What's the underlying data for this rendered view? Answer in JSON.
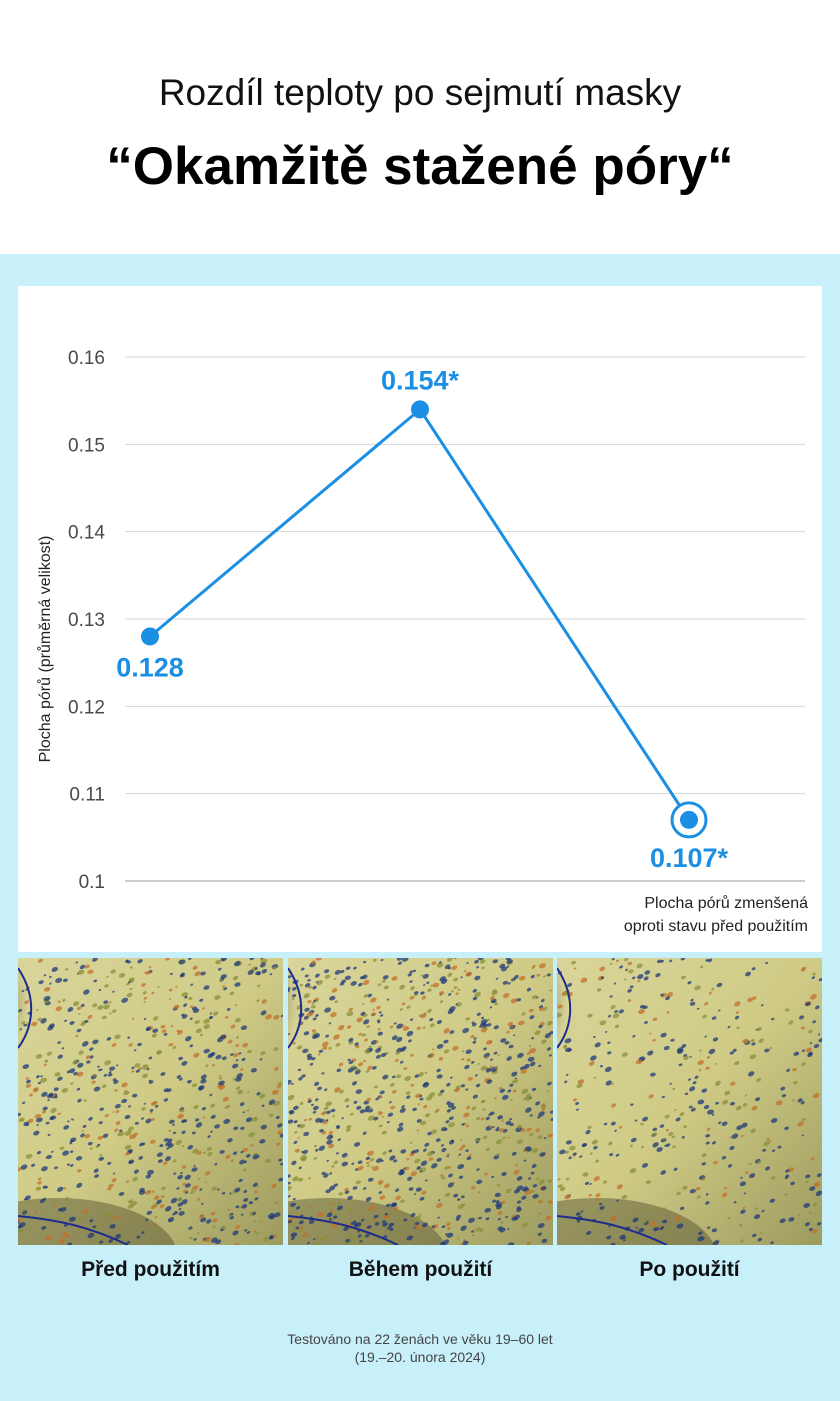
{
  "header": {
    "subtitle": "Rozdíl teploty po sejmutí masky",
    "title": "“Okamžitě stažené póry“"
  },
  "chart_data": {
    "type": "line",
    "categories": [
      "Před použitím",
      "Během použití",
      "Po použití"
    ],
    "series": [
      {
        "values": [
          0.128,
          0.154,
          0.107
        ]
      }
    ],
    "data_labels": [
      "0.128",
      "0.154*",
      "0.107*"
    ],
    "ylabel": "Plocha pórů (průměrná velikost)",
    "ylim": [
      0.1,
      0.16
    ],
    "yticks": [
      "0.16",
      "0.15",
      "0.14",
      "0.13",
      "0.12",
      "0.11",
      "0.1"
    ],
    "grid": true,
    "annotation": [
      "Plocha pórů zmenšená",
      "oproti stavu před použitím"
    ],
    "color": "#1a8fe3"
  },
  "photos": [
    {
      "label": "Před použitím",
      "density": "high"
    },
    {
      "label": "Během použití",
      "density": "highest"
    },
    {
      "label": "Po použití",
      "density": "low"
    }
  ],
  "footnote": {
    "line1": "Testováno na 22 ženách ve věku 19–60 let",
    "line2": "(19.–20. února 2024)"
  }
}
